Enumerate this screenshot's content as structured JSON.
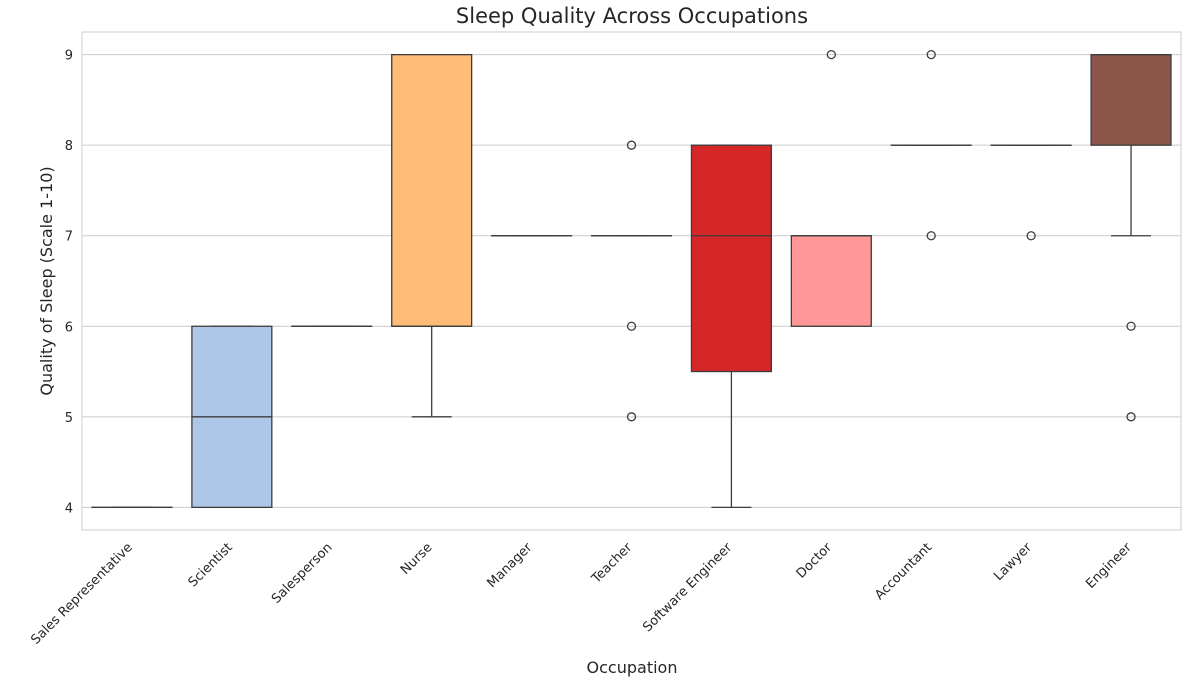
{
  "chart_data": {
    "type": "box",
    "title": "Sleep Quality Across Occupations",
    "xlabel": "Occupation",
    "ylabel": "Quality of Sleep (Scale 1-10)",
    "ylim": [
      3.75,
      9.25
    ],
    "yticks": [
      4,
      5,
      6,
      7,
      8,
      9
    ],
    "grid": "horizontal",
    "categories": [
      "Sales Representative",
      "Scientist",
      "Salesperson",
      "Nurse",
      "Manager",
      "Teacher",
      "Software Engineer",
      "Doctor",
      "Accountant",
      "Lawyer",
      "Engineer"
    ],
    "boxes": [
      {
        "category": "Sales Representative",
        "min": 4,
        "q1": 4,
        "median": 4,
        "q3": 4,
        "max": 4,
        "outliers": [],
        "color": "#aec7e8"
      },
      {
        "category": "Scientist",
        "min": 4,
        "q1": 4,
        "median": 5,
        "q3": 6,
        "max": 6,
        "outliers": [],
        "color": "#aec7e8"
      },
      {
        "category": "Salesperson",
        "min": 6,
        "q1": 6,
        "median": 6,
        "q3": 6,
        "max": 6,
        "outliers": [],
        "color": "#ffbb78"
      },
      {
        "category": "Nurse",
        "min": 5,
        "q1": 6,
        "median": 6,
        "q3": 9,
        "max": 9,
        "outliers": [],
        "color": "#ffbb78"
      },
      {
        "category": "Manager",
        "min": 7,
        "q1": 7,
        "median": 7,
        "q3": 7,
        "max": 7,
        "outliers": [],
        "color": "#98df8a"
      },
      {
        "category": "Teacher",
        "min": 7,
        "q1": 7,
        "median": 7,
        "q3": 7,
        "max": 7,
        "outliers": [
          8,
          6,
          5
        ],
        "color": "#98df8a"
      },
      {
        "category": "Software Engineer",
        "min": 4,
        "q1": 5.5,
        "median": 7,
        "q3": 8,
        "max": 8,
        "outliers": [],
        "color": "#d62728"
      },
      {
        "category": "Doctor",
        "min": 6,
        "q1": 6,
        "median": 7,
        "q3": 7,
        "max": 7,
        "outliers": [
          9
        ],
        "color": "#ff9896"
      },
      {
        "category": "Accountant",
        "min": 8,
        "q1": 8,
        "median": 8,
        "q3": 8,
        "max": 8,
        "outliers": [
          9,
          7
        ],
        "color": "#9467bd"
      },
      {
        "category": "Lawyer",
        "min": 8,
        "q1": 8,
        "median": 8,
        "q3": 8,
        "max": 8,
        "outliers": [
          7
        ],
        "color": "#c5b0d5"
      },
      {
        "category": "Engineer",
        "min": 7,
        "q1": 8,
        "median": 9,
        "q3": 9,
        "max": 9,
        "outliers": [
          6,
          5
        ],
        "color": "#8c564b"
      }
    ]
  }
}
